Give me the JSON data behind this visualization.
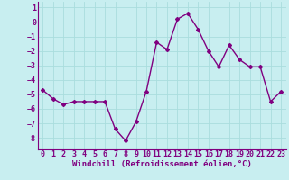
{
  "x": [
    0,
    1,
    2,
    3,
    4,
    5,
    6,
    7,
    8,
    9,
    10,
    11,
    12,
    13,
    14,
    15,
    16,
    17,
    18,
    19,
    20,
    21,
    22,
    23
  ],
  "y": [
    -4.7,
    -5.3,
    -5.7,
    -5.5,
    -5.5,
    -5.5,
    -5.5,
    -7.4,
    -8.2,
    -6.9,
    -4.8,
    -1.4,
    -1.9,
    0.2,
    0.6,
    -0.5,
    -2.0,
    -3.1,
    -1.6,
    -2.6,
    -3.1,
    -3.1,
    -5.5,
    -4.8
  ],
  "line_color": "#800080",
  "marker": "D",
  "marker_size": 2,
  "line_width": 1.0,
  "bg_color": "#c8eef0",
  "grid_color": "#aadddd",
  "xlabel": "Windchill (Refroidissement éolien,°C)",
  "xlabel_color": "#800080",
  "tick_color": "#800080",
  "ylim": [
    -8.8,
    1.4
  ],
  "xlim": [
    -0.5,
    23.5
  ],
  "yticks": [
    1,
    0,
    -1,
    -2,
    -3,
    -4,
    -5,
    -6,
    -7,
    -8
  ],
  "xticks": [
    0,
    1,
    2,
    3,
    4,
    5,
    6,
    7,
    8,
    9,
    10,
    11,
    12,
    13,
    14,
    15,
    16,
    17,
    18,
    19,
    20,
    21,
    22,
    23
  ],
  "axis_fontsize": 6.5,
  "tick_fontsize": 6.0
}
